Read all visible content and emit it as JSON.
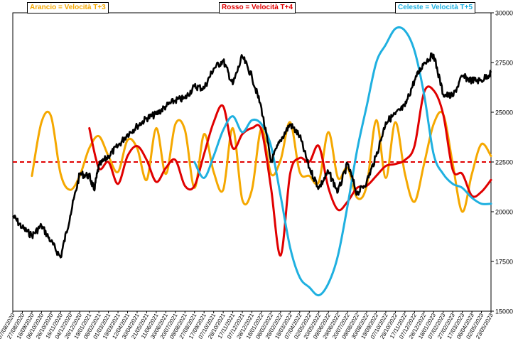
{
  "chart_data": {
    "type": "line",
    "ylim": [
      15000,
      30000
    ],
    "y_ticks": [
      "15000",
      "17500",
      "20000",
      "22500",
      "25000",
      "27500",
      "30000"
    ],
    "y_tick_values": [
      15000,
      17500,
      20000,
      22500,
      25000,
      27500,
      30000
    ],
    "x_tick_labels": [
      "07/08/2020",
      "27/08/2020",
      "16/09/2020",
      "06/10/2020",
      "26/10/2020",
      "16/11/2020",
      "04/12/2020",
      "28/12/2020",
      "19/01/2021",
      "08/02/2021",
      "01/03/2021",
      "19/03/2021",
      "12/04/2021",
      "30/04/2021",
      "21/05/2021",
      "11/06/2021",
      "30/06/2021",
      "20/07/2021",
      "09/08/2021",
      "27/08/2021",
      "17/09/2021",
      "07/10/2021",
      "28/10/2021",
      "17/11/2021",
      "07/12/2021",
      "28/12/2021",
      "18/01/2022",
      "08/02/2022",
      "28/02/2022",
      "18/03/2022",
      "07/04/2022",
      "02/05/2022",
      "20/05/2022",
      "09/06/2022",
      "29/06/2022",
      "20/07/2022",
      "09/08/2022",
      "30/08/2022",
      "19/09/2022",
      "07/10/2022",
      "28/10/2022",
      "17/11/2022",
      "07/12/2022",
      "28/12/2022",
      "18/01/2023",
      "07/02/2023",
      "27/02/2023",
      "17/03/2023",
      "06/04/2023",
      "02/05/2023",
      "23/05/2023"
    ],
    "reference_line": {
      "value": 22500,
      "color": "#e00000",
      "style": "dashed"
    },
    "legend": [
      "Arancio = Velocità T+3",
      "Rosso = Velocità T+4",
      "Celeste = Velocità T+5"
    ],
    "series": [
      {
        "name": "Price",
        "color": "#000000",
        "x_index": [
          0,
          1,
          2,
          3,
          4,
          5,
          6,
          7,
          8,
          8.5,
          9,
          10,
          11,
          12,
          13,
          14,
          15,
          16,
          17,
          18,
          19,
          20,
          21,
          22,
          23,
          24,
          25,
          26,
          27,
          28,
          29,
          30,
          31,
          32,
          33,
          34,
          35,
          36,
          37,
          38,
          39,
          40,
          41,
          42,
          43,
          44,
          45,
          46,
          47,
          48,
          49,
          50
        ],
        "values": [
          19800,
          19200,
          18800,
          19300,
          18500,
          17700,
          19800,
          21900,
          21800,
          21100,
          22300,
          22800,
          23300,
          23900,
          24300,
          24700,
          24900,
          25300,
          25600,
          25700,
          26300,
          26200,
          27200,
          27600,
          26400,
          27800,
          26800,
          25200,
          22500,
          23600,
          24400,
          23800,
          22200,
          21200,
          22000,
          21000,
          22400,
          20900,
          21500,
          22800,
          24500,
          24900,
          25300,
          26600,
          27500,
          27900,
          25900,
          25800,
          26800,
          26600,
          26600,
          27000
        ]
      },
      {
        "name": "Arancio = Velocità T+3",
        "color": "#f5a800",
        "x_index": [
          2,
          3,
          4,
          5,
          6,
          7,
          8,
          9,
          10,
          11,
          12,
          13,
          14,
          15,
          16,
          17,
          18,
          19,
          20,
          21,
          22,
          23,
          24,
          25,
          26,
          27,
          28,
          29,
          30,
          31,
          32,
          33,
          34,
          35,
          36,
          37,
          38,
          39,
          40,
          41,
          42,
          43,
          44,
          45,
          46,
          47,
          48,
          49,
          50
        ],
        "values": [
          21800,
          24500,
          24800,
          21900,
          21100,
          21800,
          23200,
          23800,
          22800,
          22000,
          23600,
          23200,
          21600,
          24200,
          21900,
          24400,
          24100,
          21200,
          23900,
          22000,
          21100,
          24200,
          20600,
          21100,
          24200,
          21900,
          22600,
          24500,
          22000,
          21800,
          21500,
          24000,
          21700,
          22200,
          20700,
          21300,
          24600,
          21700,
          24500,
          21900,
          20500,
          22400,
          24400,
          24900,
          22400,
          20000,
          21900,
          23400,
          22800
        ]
      },
      {
        "name": "Rosso = Velocità T+4",
        "color": "#e00000",
        "x_index": [
          8,
          9,
          10,
          11,
          12,
          13,
          14,
          15,
          16,
          17,
          18,
          19,
          20,
          21,
          22,
          23,
          24,
          25,
          26,
          27,
          28,
          29,
          30,
          31,
          32,
          33,
          34,
          35,
          36,
          37,
          38,
          39,
          40,
          41,
          42,
          43,
          44,
          45,
          46,
          47,
          48,
          49,
          50
        ],
        "values": [
          24200,
          22200,
          22500,
          21400,
          22800,
          23300,
          22600,
          21500,
          22200,
          22600,
          21300,
          21300,
          22900,
          24500,
          25300,
          23200,
          23900,
          24200,
          24100,
          21200,
          17800,
          21900,
          22700,
          22500,
          23300,
          21200,
          20100,
          20500,
          21200,
          21300,
          21800,
          22300,
          22400,
          22600,
          23300,
          26000,
          26100,
          24900,
          22100,
          21900,
          20800,
          21000,
          21600
        ]
      },
      {
        "name": "Celeste = Velocità T+5",
        "color": "#1fb0e0",
        "x_index": [
          19,
          20,
          21,
          22,
          23,
          24,
          25,
          26,
          27,
          28,
          29,
          30,
          31,
          32,
          33,
          34,
          35,
          36,
          37,
          38,
          39,
          40,
          41,
          42,
          43,
          44,
          45,
          46,
          47,
          48,
          49,
          50
        ],
        "values": [
          22500,
          21700,
          22800,
          24100,
          24800,
          24000,
          24600,
          24400,
          23300,
          20800,
          18200,
          16700,
          16200,
          15800,
          16400,
          17800,
          20300,
          23100,
          25300,
          27500,
          28400,
          29200,
          29100,
          28100,
          25900,
          22900,
          21900,
          21400,
          21200,
          20700,
          20400,
          20400
        ]
      }
    ]
  }
}
